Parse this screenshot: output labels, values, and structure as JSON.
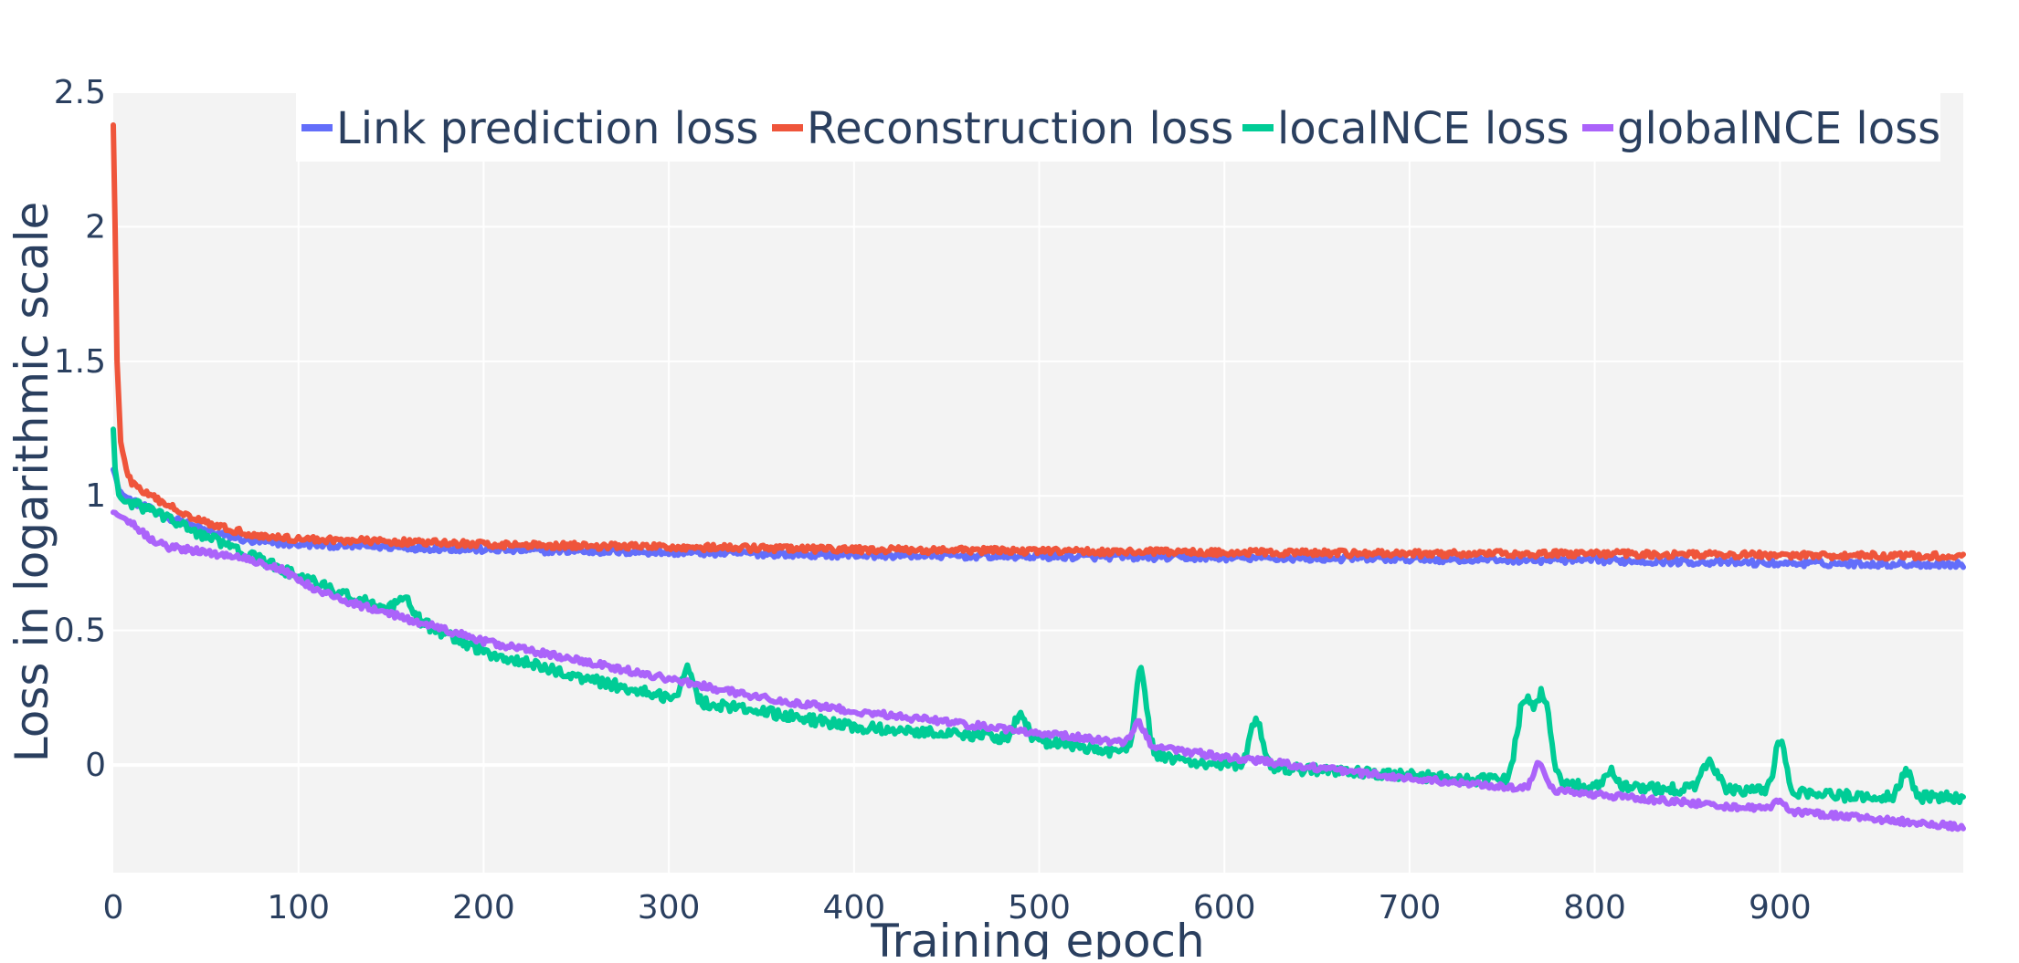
{
  "chart_data": {
    "type": "line",
    "title": "",
    "xlabel": "Training epoch",
    "ylabel": "Loss in logarithmic scale",
    "xlim": [
      0,
      999
    ],
    "ylim": [
      -0.4,
      2.5
    ],
    "x_ticks": [
      0,
      100,
      200,
      300,
      400,
      500,
      600,
      700,
      800,
      900
    ],
    "x_tick_labels": [
      "0",
      "100",
      "200",
      "300",
      "400",
      "500",
      "600",
      "700",
      "800",
      "900"
    ],
    "y_ticks": [
      0,
      0.5,
      1,
      1.5,
      2,
      2.5
    ],
    "y_tick_labels": [
      "0",
      "0.5",
      "1",
      "1.5",
      "2",
      "2.5"
    ],
    "grid": true,
    "legend_position": "top-right",
    "series": [
      {
        "name": "Link prediction loss",
        "color": "#636efa",
        "noise": 0.012,
        "x": [
          0,
          1,
          3,
          6,
          10,
          20,
          30,
          50,
          75,
          100,
          150,
          200,
          300,
          400,
          500,
          600,
          700,
          800,
          900,
          999
        ],
        "values": [
          1.1,
          1.08,
          1.02,
          1.0,
          0.98,
          0.95,
          0.92,
          0.87,
          0.83,
          0.82,
          0.81,
          0.8,
          0.79,
          0.78,
          0.775,
          0.77,
          0.765,
          0.76,
          0.75,
          0.745
        ]
      },
      {
        "name": "Reconstruction loss",
        "color": "#ef553b",
        "noise": 0.012,
        "x": [
          0,
          1,
          2,
          4,
          7,
          10,
          15,
          25,
          40,
          60,
          80,
          100,
          150,
          200,
          300,
          400,
          500,
          600,
          700,
          800,
          900,
          999
        ],
        "values": [
          2.38,
          2.0,
          1.5,
          1.2,
          1.1,
          1.05,
          1.02,
          0.98,
          0.93,
          0.88,
          0.85,
          0.84,
          0.83,
          0.82,
          0.81,
          0.8,
          0.795,
          0.79,
          0.785,
          0.785,
          0.78,
          0.775
        ]
      },
      {
        "name": "localNCE loss",
        "color": "#00cc96",
        "noise": 0.02,
        "x": [
          0,
          1,
          3,
          6,
          10,
          20,
          40,
          60,
          80,
          100,
          130,
          150,
          160,
          200,
          250,
          300,
          350,
          400,
          450,
          500,
          550,
          600,
          650,
          700,
          750,
          800,
          850,
          900,
          950,
          999
        ],
        "values": [
          1.25,
          1.1,
          1.0,
          0.98,
          0.97,
          0.95,
          0.88,
          0.82,
          0.76,
          0.7,
          0.62,
          0.57,
          0.55,
          0.42,
          0.33,
          0.25,
          0.2,
          0.14,
          0.12,
          0.09,
          0.04,
          0.0,
          -0.02,
          -0.04,
          -0.06,
          -0.08,
          -0.09,
          -0.1,
          -0.12,
          -0.12
        ],
        "spikes": [
          {
            "x": 157,
            "h": 0.06,
            "w": 4
          },
          {
            "x": 310,
            "h": 0.12,
            "w": 3
          },
          {
            "x": 490,
            "h": 0.1,
            "w": 3
          },
          {
            "x": 555,
            "h": 0.32,
            "w": 3
          },
          {
            "x": 617,
            "h": 0.18,
            "w": 3
          },
          {
            "x": 762,
            "h": 0.3,
            "w": 4
          },
          {
            "x": 772,
            "h": 0.32,
            "w": 4
          },
          {
            "x": 808,
            "h": 0.06,
            "w": 3
          },
          {
            "x": 862,
            "h": 0.1,
            "w": 4
          },
          {
            "x": 900,
            "h": 0.18,
            "w": 3
          },
          {
            "x": 968,
            "h": 0.1,
            "w": 3
          }
        ]
      },
      {
        "name": "globalNCE loss",
        "color": "#ab63fa",
        "noise": 0.012,
        "x": [
          0,
          5,
          10,
          20,
          30,
          50,
          70,
          90,
          110,
          130,
          150,
          180,
          200,
          250,
          300,
          350,
          400,
          450,
          500,
          550,
          600,
          650,
          700,
          750,
          800,
          850,
          900,
          950,
          999
        ],
        "values": [
          0.94,
          0.92,
          0.9,
          0.84,
          0.81,
          0.79,
          0.77,
          0.73,
          0.65,
          0.6,
          0.56,
          0.5,
          0.46,
          0.39,
          0.32,
          0.25,
          0.2,
          0.16,
          0.12,
          0.08,
          0.03,
          -0.01,
          -0.05,
          -0.08,
          -0.11,
          -0.14,
          -0.17,
          -0.2,
          -0.23
        ],
        "spikes": [
          {
            "x": 554,
            "h": 0.08,
            "w": 3
          },
          {
            "x": 770,
            "h": 0.1,
            "w": 3
          },
          {
            "x": 900,
            "h": 0.04,
            "w": 3
          }
        ]
      }
    ]
  }
}
